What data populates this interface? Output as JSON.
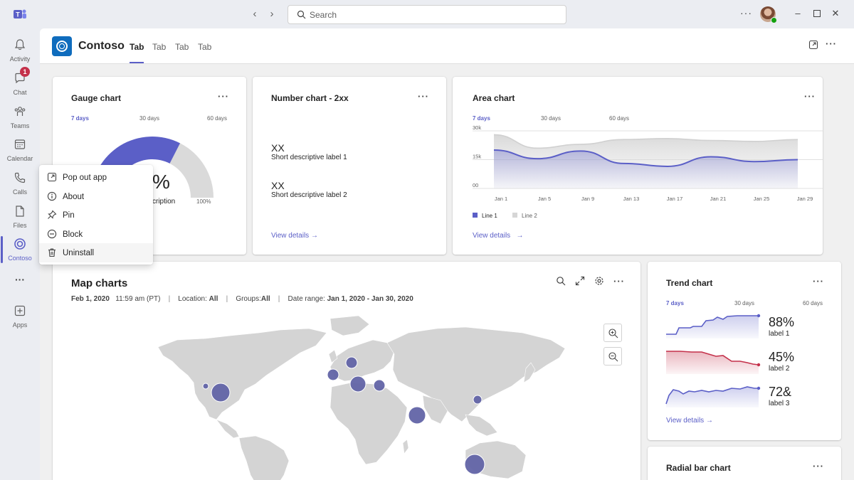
{
  "titlebar": {
    "search_placeholder": "Search",
    "more": "···"
  },
  "rail": {
    "items": [
      {
        "label": "Activity",
        "icon": "bell-icon"
      },
      {
        "label": "Chat",
        "icon": "chat-icon",
        "badge": "1"
      },
      {
        "label": "Teams",
        "icon": "teams-icon"
      },
      {
        "label": "Calendar",
        "icon": "calendar-icon"
      },
      {
        "label": "Calls",
        "icon": "phone-icon"
      },
      {
        "label": "Files",
        "icon": "file-icon"
      },
      {
        "label": "Contoso",
        "icon": "contoso-icon",
        "active": true
      },
      {
        "label": "···",
        "icon": "more-icon"
      },
      {
        "label": "Apps",
        "icon": "plus-square-icon"
      }
    ]
  },
  "app": {
    "title": "Contoso",
    "tabs": [
      "Tab",
      "Tab",
      "Tab",
      "Tab"
    ],
    "more": "···"
  },
  "gauge": {
    "title": "Gauge chart",
    "ranges": [
      "7 days",
      "30 days",
      "60 days"
    ],
    "value_text": "%",
    "description": "cription",
    "max_label": "100%",
    "value": 0.65
  },
  "number_chart": {
    "title": "Number chart - 2xx",
    "items": [
      {
        "value": "XX",
        "label": "Short descriptive label 1"
      },
      {
        "value": "XX",
        "label": "Short descriptive label 2"
      }
    ],
    "link": "View details"
  },
  "area_chart": {
    "title": "Area chart",
    "ranges": [
      "7 days",
      "30 days",
      "60 days"
    ],
    "link": "View details",
    "legend": [
      "Line 1",
      "Line 2"
    ]
  },
  "chart_data": {
    "type": "area",
    "x": [
      "Jan 1",
      "Jan 5",
      "Jan 9",
      "Jan 13",
      "Jan 17",
      "Jan 21",
      "Jan 25",
      "Jan 29"
    ],
    "y_ticks": [
      "30k",
      "15k",
      "00"
    ],
    "ylim": [
      0,
      30000
    ],
    "series": [
      {
        "name": "Line 1",
        "color": "#5b5fc7",
        "values": [
          20000,
          15500,
          19500,
          13000,
          11500,
          16500,
          14000,
          15000
        ]
      },
      {
        "name": "Line 2",
        "color": "#d6d6d6",
        "values": [
          28000,
          21000,
          23000,
          25500,
          26000,
          25000,
          24500,
          25500
        ]
      }
    ],
    "legend_position": "bottom-left"
  },
  "map_chart": {
    "title": "Map charts",
    "date": "Feb 1, 2020",
    "time": "11:59 am (PT)",
    "location_label": "Location:",
    "location_value": "All",
    "groups_label": "Groups:",
    "groups_value": "All",
    "range_label": "Date range:",
    "range_value": "Jan 1, 2020 - Jan 30, 2020",
    "sep": "|"
  },
  "trend_chart": {
    "title": "Trend chart",
    "ranges": [
      "7 days",
      "30 days",
      "60 days"
    ],
    "items": [
      {
        "value": "88%",
        "label": "label 1",
        "color": "#5b5fc7"
      },
      {
        "value": "45%",
        "label": "label 2",
        "color": "#c4314b"
      },
      {
        "value": "72&",
        "label": "label 3",
        "color": "#5b5fc7"
      }
    ],
    "link": "View details"
  },
  "radial_chart": {
    "title": "Radial bar chart"
  },
  "context_menu": {
    "items": [
      {
        "label": "Pop out app",
        "icon": "popout-icon"
      },
      {
        "label": "About",
        "icon": "info-icon"
      },
      {
        "label": "Pin",
        "icon": "pin-icon"
      },
      {
        "label": "Block",
        "icon": "block-icon"
      },
      {
        "label": "Uninstall",
        "icon": "trash-icon"
      }
    ]
  },
  "colors": {
    "accent": "#5b5fc7",
    "danger": "#c4314b",
    "map_land": "#d6d6d6",
    "bubble": "#6264a7"
  }
}
